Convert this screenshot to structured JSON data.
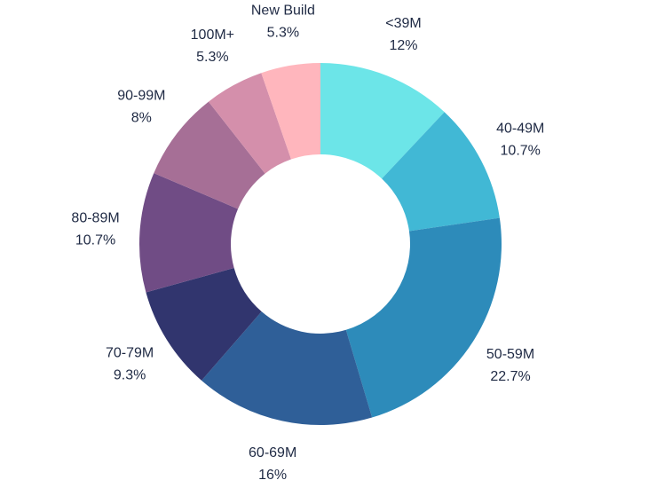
{
  "chart_data": {
    "type": "pie",
    "title": "",
    "legend": "none",
    "slices": [
      {
        "label": "<39M",
        "value": 12,
        "value_label": "12%",
        "color": "#6ce5e8"
      },
      {
        "label": "40-49M",
        "value": 10.7,
        "value_label": "10.7%",
        "color": "#41b8d5"
      },
      {
        "label": "50-59M",
        "value": 22.7,
        "value_label": "22.7%",
        "color": "#2d8bba"
      },
      {
        "label": "60-69M",
        "value": 16,
        "value_label": "16%",
        "color": "#2f5f98"
      },
      {
        "label": "70-79M",
        "value": 9.3,
        "value_label": "9.3%",
        "color": "#31356e"
      },
      {
        "label": "80-89M",
        "value": 10.7,
        "value_label": "10.7%",
        "color": "#704c85"
      },
      {
        "label": "90-99M",
        "value": 8,
        "value_label": "8%",
        "color": "#a66f96"
      },
      {
        "label": "100M+",
        "value": 5.3,
        "value_label": "5.3%",
        "color": "#d48fab"
      },
      {
        "label": "New Build",
        "value": 5.3,
        "value_label": "5.3%",
        "color": "#ffb6bd"
      }
    ]
  }
}
